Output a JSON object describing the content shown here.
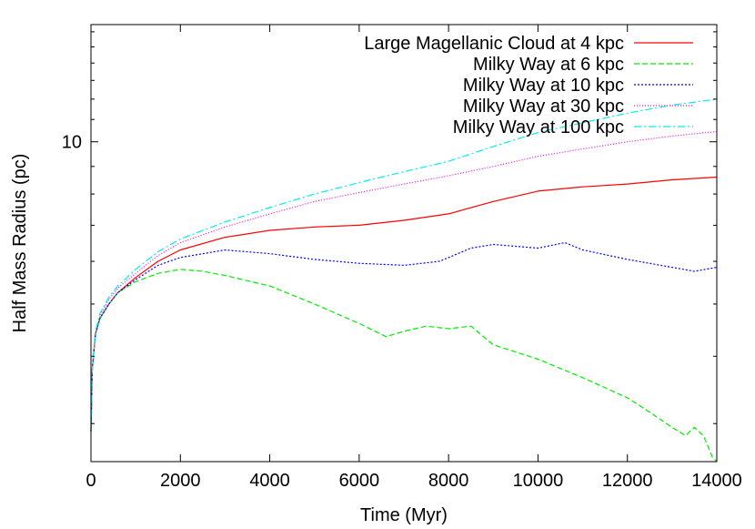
{
  "chart_data": {
    "type": "line",
    "title": "",
    "xlabel": "Time (Myr)",
    "ylabel": "Half Mass Radius (pc)",
    "xlim": [
      0,
      14000
    ],
    "ylim": [
      2.55,
      16.5
    ],
    "yscale": "log",
    "grid": false,
    "legend_position": "top-right",
    "x_ticks": [
      0,
      2000,
      4000,
      6000,
      8000,
      10000,
      12000,
      14000
    ],
    "x_tick_labels": [
      "0",
      "2000",
      "4000",
      "6000",
      "8000",
      "10000",
      "12000",
      "14000"
    ],
    "y_ticks": [
      10
    ],
    "y_tick_labels": [
      "10"
    ],
    "series": [
      {
        "name": "Large Magellanic Cloud at 4 kpc",
        "color": "#ff0000",
        "dash": "solid",
        "x": [
          0,
          30,
          100,
          200,
          400,
          600,
          1000,
          1500,
          2000,
          3000,
          4000,
          5000,
          6000,
          7000,
          8000,
          9000,
          10000,
          11000,
          12000,
          13000,
          14000
        ],
        "y": [
          2.9,
          3.8,
          4.4,
          4.7,
          5.0,
          5.25,
          5.6,
          6.0,
          6.3,
          6.65,
          6.85,
          6.95,
          7.0,
          7.15,
          7.35,
          7.75,
          8.1,
          8.25,
          8.35,
          8.5,
          8.6
        ]
      },
      {
        "name": "Milky Way at 6 kpc",
        "color": "#00ee00",
        "dash": "6,3",
        "x": [
          0,
          30,
          100,
          200,
          400,
          600,
          1000,
          1500,
          2000,
          2500,
          3000,
          4000,
          5000,
          6000,
          6600,
          7000,
          7500,
          8000,
          8500,
          9000,
          10000,
          11000,
          12000,
          12500,
          13000,
          13300,
          13500,
          13700,
          13900,
          14000
        ],
        "y": [
          2.9,
          3.8,
          4.4,
          4.7,
          5.0,
          5.25,
          5.5,
          5.7,
          5.8,
          5.75,
          5.65,
          5.4,
          5.0,
          4.6,
          4.35,
          4.45,
          4.55,
          4.5,
          4.55,
          4.2,
          3.95,
          3.65,
          3.35,
          3.15,
          2.95,
          2.85,
          2.95,
          2.85,
          2.6,
          2.55
        ]
      },
      {
        "name": "Milky Way at 10 kpc",
        "color": "#0000ff",
        "dash": "2,2",
        "x": [
          0,
          30,
          100,
          200,
          400,
          600,
          1000,
          1500,
          2000,
          3000,
          4000,
          5000,
          6000,
          7000,
          7800,
          8500,
          9000,
          10000,
          10600,
          11000,
          12000,
          13000,
          13500,
          14000
        ],
        "y": [
          2.9,
          3.8,
          4.4,
          4.7,
          5.0,
          5.25,
          5.55,
          5.9,
          6.1,
          6.3,
          6.2,
          6.05,
          5.95,
          5.9,
          6.0,
          6.35,
          6.45,
          6.35,
          6.5,
          6.3,
          6.05,
          5.85,
          5.75,
          5.85
        ]
      },
      {
        "name": "Milky Way at 30 kpc",
        "color": "#ff00ff",
        "dash": "1,2",
        "x": [
          0,
          30,
          100,
          200,
          400,
          600,
          1000,
          1500,
          2000,
          3000,
          4000,
          5000,
          6000,
          7000,
          8000,
          9000,
          10000,
          11000,
          12000,
          13000,
          14000
        ],
        "y": [
          2.9,
          3.8,
          4.4,
          4.75,
          5.1,
          5.35,
          5.7,
          6.15,
          6.5,
          6.95,
          7.35,
          7.75,
          8.05,
          8.35,
          8.65,
          9.0,
          9.4,
          9.7,
          10.0,
          10.25,
          10.45
        ]
      },
      {
        "name": "Milky Way at 100 kpc",
        "color": "#00eeee",
        "dash": "8,3,2,3",
        "x": [
          0,
          30,
          100,
          200,
          400,
          600,
          1000,
          1500,
          2000,
          3000,
          4000,
          5000,
          6000,
          7000,
          8000,
          9000,
          10000,
          11000,
          12000,
          13000,
          14000
        ],
        "y": [
          2.9,
          3.8,
          4.45,
          4.8,
          5.15,
          5.4,
          5.8,
          6.25,
          6.6,
          7.1,
          7.55,
          8.0,
          8.4,
          8.8,
          9.2,
          9.8,
          10.4,
          10.85,
          11.3,
          11.7,
          12.0
        ]
      }
    ]
  }
}
